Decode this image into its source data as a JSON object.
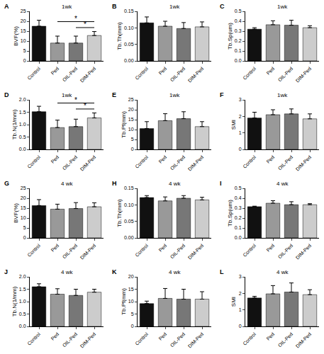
{
  "chart_data": [
    {
      "panel": "A",
      "type": "bar",
      "title": "1wk",
      "y_label": "BVF(%)",
      "categories": [
        "Control",
        "Ped",
        "OIL-Ped",
        "DIM-Ped"
      ],
      "values": [
        17.5,
        9,
        9,
        12.8
      ],
      "errors": [
        3,
        3.5,
        3.5,
        2
      ],
      "colors": [
        "#111111",
        "#999999",
        "#777777",
        "#cccccc"
      ],
      "ylim": [
        0,
        25
      ],
      "yticks": [
        0,
        5,
        10,
        15,
        20,
        25
      ],
      "comparisons": [
        {
          "from": "Ped",
          "to": "DIM-Ped",
          "text": "*"
        },
        {
          "from": "OIL-Ped",
          "to": "DIM-Ped",
          "text": "*"
        }
      ]
    },
    {
      "panel": "B",
      "type": "bar",
      "title": "1wk",
      "y_label": "Tb.Th(mm)",
      "categories": [
        "Control",
        "Ped",
        "OIL-Ped",
        "DIM-Ped"
      ],
      "values": [
        0.115,
        0.105,
        0.098,
        0.103
      ],
      "errors": [
        0.018,
        0.015,
        0.018,
        0.015
      ],
      "colors": [
        "#111111",
        "#999999",
        "#777777",
        "#cccccc"
      ],
      "ylim": [
        0,
        0.15
      ],
      "yticks": [
        {
          "value": 0,
          "label": "0.00"
        },
        {
          "value": 0.05,
          "label": "0.05"
        },
        {
          "value": 0.1,
          "label": "0.10"
        },
        {
          "value": 0.15,
          "label": "0.15"
        }
      ]
    },
    {
      "panel": "C",
      "type": "bar",
      "title": "1wk",
      "y_label": "Tb.Sp(um)",
      "categories": [
        "Control",
        "Ped",
        "OIL-Ped",
        "DIM-Ped"
      ],
      "values": [
        0.32,
        0.365,
        0.36,
        0.335
      ],
      "errors": [
        0.015,
        0.04,
        0.05,
        0.02
      ],
      "colors": [
        "#111111",
        "#999999",
        "#777777",
        "#cccccc"
      ],
      "ylim": [
        0,
        0.5
      ],
      "yticks": [
        {
          "value": 0,
          "label": "0.0"
        },
        0.1,
        0.2,
        0.3,
        0.4,
        0.5
      ]
    },
    {
      "panel": "D",
      "type": "bar",
      "title": "1wk",
      "y_label": "Tb.N(1/mm)",
      "categories": [
        "Control",
        "Ped",
        "OIL-Ped",
        "DIM-Ped"
      ],
      "values": [
        1.52,
        0.88,
        0.92,
        1.27
      ],
      "errors": [
        0.22,
        0.3,
        0.3,
        0.2
      ],
      "colors": [
        "#111111",
        "#999999",
        "#777777",
        "#cccccc"
      ],
      "ylim": [
        0,
        2
      ],
      "yticks": [
        {
          "value": 0,
          "label": "0.0"
        },
        0.5,
        {
          "value": 1,
          "label": "1.0"
        },
        1.5,
        {
          "value": 2,
          "label": "2.0"
        }
      ],
      "comparisons": [
        {
          "from": "Ped",
          "to": "DIM-Ped",
          "text": "*"
        },
        {
          "from": "OIL-Ped",
          "to": "DIM-Ped",
          "text": "*"
        }
      ]
    },
    {
      "panel": "E",
      "type": "bar",
      "title": "1wk",
      "y_label": "Tb.Pf(mm)",
      "categories": [
        "Control",
        "Ped",
        "OIL-Ped",
        "DIM-Ped"
      ],
      "values": [
        10.5,
        14.5,
        15.5,
        11.5
      ],
      "errors": [
        3.5,
        3.5,
        3.5,
        2.5
      ],
      "colors": [
        "#111111",
        "#999999",
        "#777777",
        "#cccccc"
      ],
      "ylim": [
        0,
        25
      ],
      "yticks": [
        0,
        5,
        10,
        15,
        20,
        25
      ]
    },
    {
      "panel": "F",
      "type": "bar",
      "title": "1wk",
      "y_label": "SMI",
      "categories": [
        "Control",
        "Ped",
        "OIL-Ped",
        "DIM-Ped"
      ],
      "values": [
        1.9,
        2.1,
        2.15,
        1.85
      ],
      "errors": [
        0.35,
        0.3,
        0.3,
        0.3
      ],
      "colors": [
        "#111111",
        "#999999",
        "#777777",
        "#cccccc"
      ],
      "ylim": [
        0,
        3
      ],
      "yticks": [
        0,
        1,
        2,
        3
      ]
    },
    {
      "panel": "G",
      "type": "bar",
      "title": "4 wk",
      "y_label": "BVF(%)",
      "categories": [
        "Control",
        "Ped",
        "OIL-Ped",
        "DIM-Ped"
      ],
      "values": [
        16.3,
        14.5,
        14.8,
        15.7
      ],
      "errors": [
        3,
        2.5,
        3,
        2
      ],
      "colors": [
        "#111111",
        "#999999",
        "#777777",
        "#cccccc"
      ],
      "ylim": [
        0,
        25
      ],
      "yticks": [
        0,
        5,
        10,
        15,
        20,
        25
      ]
    },
    {
      "panel": "H",
      "type": "bar",
      "title": "4 wk",
      "y_label": "Tb.Th(mm)",
      "categories": [
        "Control",
        "Ped",
        "OIL-Ped",
        "DIM-Ped"
      ],
      "values": [
        0.122,
        0.112,
        0.12,
        0.115
      ],
      "errors": [
        0.006,
        0.012,
        0.008,
        0.008
      ],
      "colors": [
        "#111111",
        "#999999",
        "#777777",
        "#cccccc"
      ],
      "ylim": [
        0,
        0.15
      ],
      "yticks": [
        {
          "value": 0,
          "label": "0.00"
        },
        {
          "value": 0.05,
          "label": "0.05"
        },
        {
          "value": 0.1,
          "label": "0.10"
        },
        {
          "value": 0.15,
          "label": "0.15"
        }
      ]
    },
    {
      "panel": "I",
      "type": "bar",
      "title": "4 wk",
      "y_label": "Tb.Sp(um)",
      "categories": [
        "Control",
        "Ped",
        "OIL-Ped",
        "DIM-Ped"
      ],
      "values": [
        0.315,
        0.35,
        0.335,
        0.335
      ],
      "errors": [
        0.005,
        0.025,
        0.03,
        0.01
      ],
      "colors": [
        "#111111",
        "#999999",
        "#777777",
        "#cccccc"
      ],
      "ylim": [
        0,
        0.5
      ],
      "yticks": [
        {
          "value": 0,
          "label": "0.0"
        },
        0.1,
        0.2,
        0.3,
        0.4,
        0.5
      ]
    },
    {
      "panel": "J",
      "type": "bar",
      "title": "4 wk",
      "y_label": "Tb.N(1/mm)",
      "categories": [
        "Control",
        "Ped",
        "OIL-Ped",
        "DIM-Ped"
      ],
      "values": [
        1.6,
        1.3,
        1.25,
        1.38
      ],
      "errors": [
        0.12,
        0.22,
        0.25,
        0.12
      ],
      "colors": [
        "#111111",
        "#999999",
        "#777777",
        "#cccccc"
      ],
      "ylim": [
        0,
        2
      ],
      "yticks": [
        {
          "value": 0,
          "label": "0.0"
        },
        0.5,
        {
          "value": 1,
          "label": "1.0"
        },
        1.5,
        {
          "value": 2,
          "label": "2.0"
        }
      ]
    },
    {
      "panel": "K",
      "type": "bar",
      "title": "4 wk",
      "y_label": "Tb.Pf(mm)",
      "categories": [
        "Control",
        "Ped",
        "OIL-Ped",
        "DIM-Ped"
      ],
      "values": [
        9.2,
        11.3,
        11,
        11
      ],
      "errors": [
        1,
        4,
        4,
        3
      ],
      "colors": [
        "#111111",
        "#999999",
        "#777777",
        "#cccccc"
      ],
      "ylim": [
        0,
        20
      ],
      "yticks": [
        0,
        5,
        10,
        15,
        20
      ]
    },
    {
      "panel": "L",
      "type": "bar",
      "title": "4 wk",
      "y_label": "SMI",
      "categories": [
        "Control",
        "Ped",
        "OIL-Ped",
        "DIM-Ped"
      ],
      "values": [
        1.72,
        1.97,
        2.08,
        1.92
      ],
      "errors": [
        0.1,
        0.5,
        0.55,
        0.3
      ],
      "colors": [
        "#111111",
        "#999999",
        "#777777",
        "#cccccc"
      ],
      "ylim": [
        0,
        3
      ],
      "yticks": [
        0,
        1,
        2,
        3
      ]
    }
  ]
}
